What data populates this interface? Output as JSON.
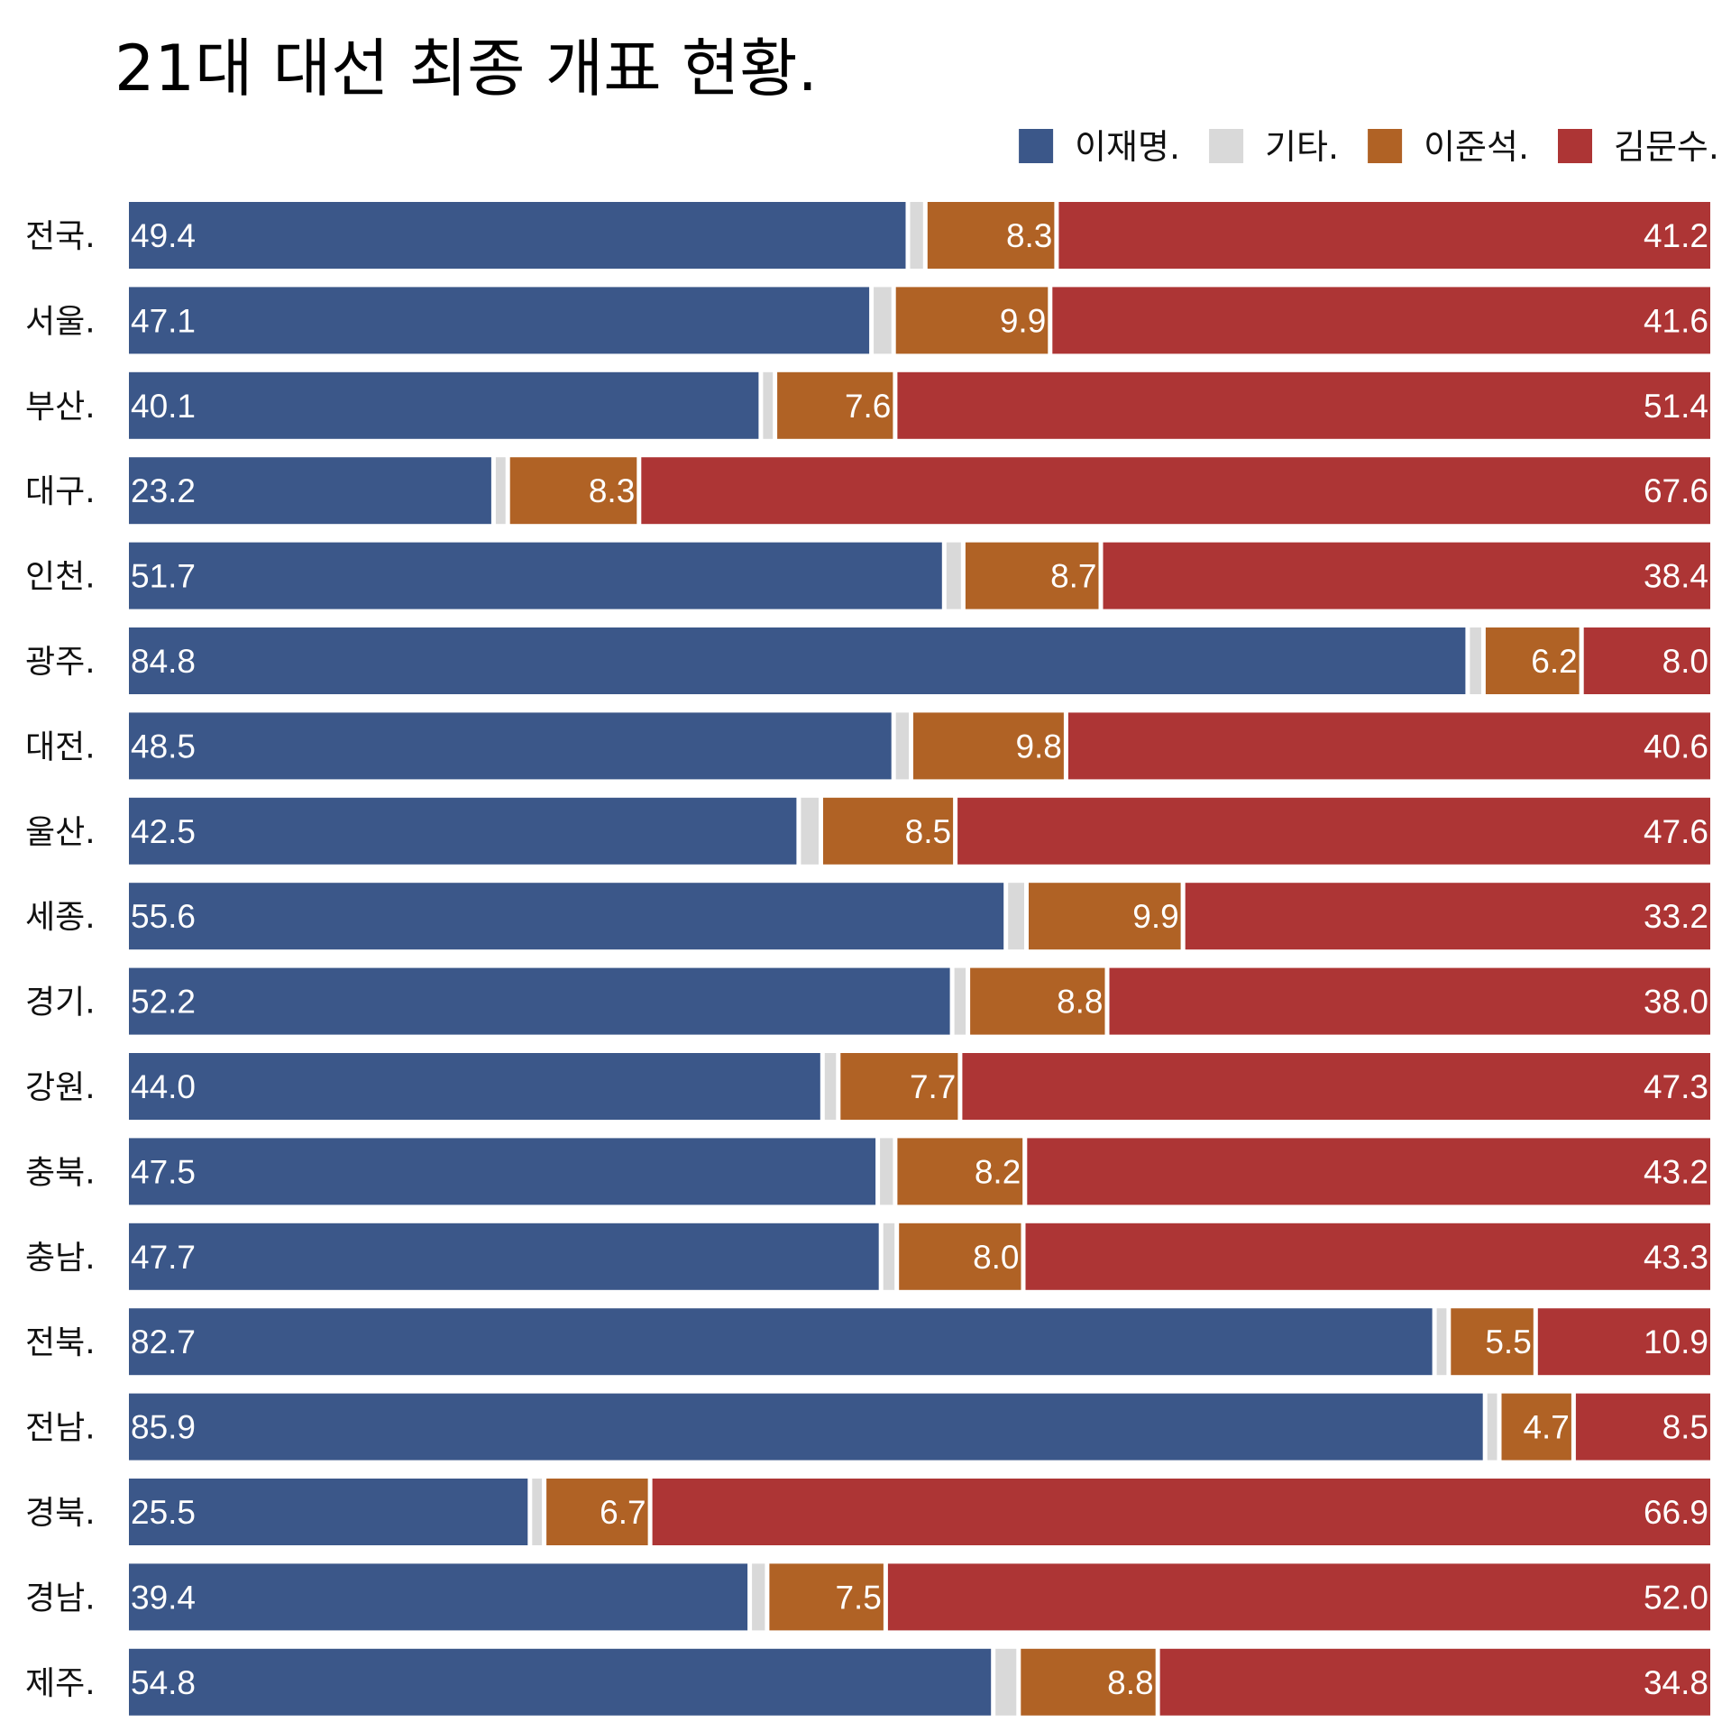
{
  "chart_data": {
    "type": "bar",
    "orientation": "horizontal",
    "stacked": true,
    "normalized": true,
    "title": "21대 대선 최종 개표 현황.",
    "xlim": [
      0,
      100
    ],
    "grid": false,
    "legend_position": "top-right",
    "categories": [
      "전국.",
      "서울.",
      "부산.",
      "대구.",
      "인천.",
      "광주.",
      "대전.",
      "울산.",
      "세종.",
      "경기.",
      "강원.",
      "충북.",
      "충남.",
      "전북.",
      "전남.",
      "경북.",
      "경남.",
      "제주."
    ],
    "legend_order": [
      "이재명.",
      "기타.",
      "이준석.",
      "김문수."
    ],
    "series": [
      {
        "name": "이재명.",
        "color": "#3b5789",
        "labels": [
          "49.4",
          "47.1",
          "40.1",
          "23.2",
          "51.7",
          "84.8",
          "48.5",
          "42.5",
          "55.6",
          "52.2",
          "44.0",
          "47.5",
          "47.7",
          "82.7",
          "85.9",
          "25.5",
          "39.4",
          "54.8"
        ],
        "values": [
          49.4,
          47.1,
          40.1,
          23.2,
          51.7,
          84.8,
          48.5,
          42.5,
          55.6,
          52.2,
          44.0,
          47.5,
          47.7,
          82.7,
          85.9,
          25.5,
          39.4,
          54.8
        ]
      },
      {
        "name": "기타.",
        "color": "#d9d9d9",
        "labels": null,
        "values": [
          1.1,
          1.4,
          0.9,
          0.9,
          1.2,
          1.0,
          1.1,
          1.4,
          1.3,
          1.0,
          1.0,
          1.1,
          1.0,
          0.9,
          0.9,
          0.9,
          1.1,
          1.6
        ]
      },
      {
        "name": "이준석.",
        "color": "#b06225",
        "labels": [
          "8.3",
          "9.9",
          "7.6",
          "8.3",
          "8.7",
          "6.2",
          "9.8",
          "8.5",
          "9.9",
          "8.8",
          "7.7",
          "8.2",
          "8.0",
          "5.5",
          "4.7",
          "6.7",
          "7.5",
          "8.8"
        ],
        "values": [
          8.3,
          9.9,
          7.6,
          8.3,
          8.7,
          6.2,
          9.8,
          8.5,
          9.9,
          8.8,
          7.7,
          8.2,
          8.0,
          5.5,
          4.7,
          6.7,
          7.5,
          8.8
        ]
      },
      {
        "name": "김문수.",
        "color": "#ad3535",
        "labels": [
          "41.2",
          "41.6",
          "51.4",
          "67.6",
          "38.4",
          "8.0",
          "40.6",
          "47.6",
          "33.2",
          "38.0",
          "47.3",
          "43.2",
          "43.3",
          "10.9",
          "8.5",
          "66.9",
          "52.0",
          "34.8"
        ],
        "values": [
          41.2,
          41.6,
          51.4,
          67.6,
          38.4,
          8.0,
          40.6,
          47.6,
          33.2,
          38.0,
          47.3,
          43.2,
          43.3,
          10.9,
          8.5,
          66.9,
          52.0,
          34.8
        ]
      }
    ]
  }
}
